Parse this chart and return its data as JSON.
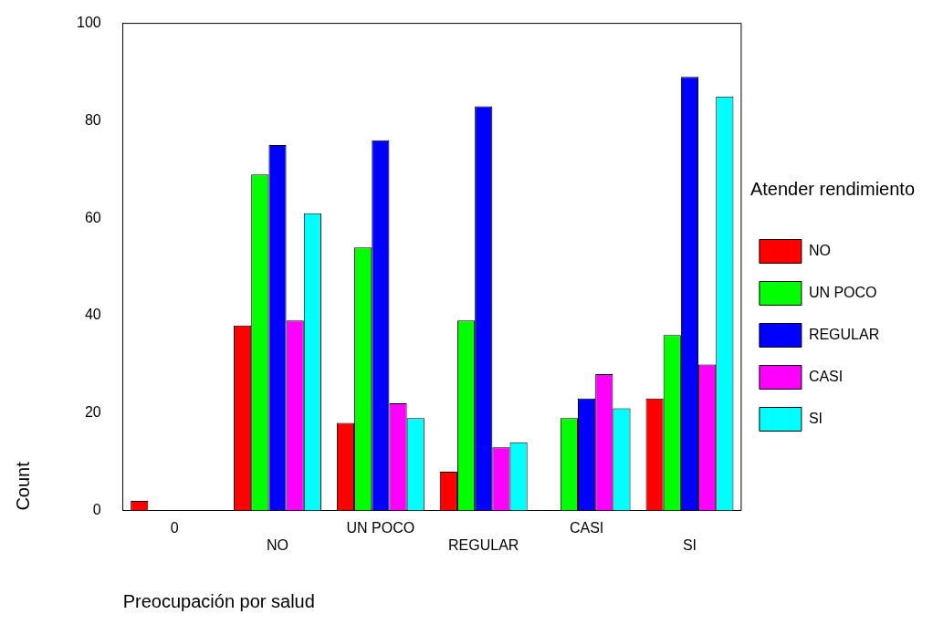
{
  "chart_data": {
    "type": "bar",
    "xlabel": "Preocupación por salud",
    "ylabel": "Count",
    "legend_title": "Atender rendimiento",
    "categories": [
      "0",
      "NO",
      "UN POCO",
      "REGULAR",
      "CASI",
      "SI"
    ],
    "series": [
      {
        "name": "NO",
        "color": "#ff0000",
        "values": [
          2,
          38,
          18,
          8,
          0,
          23
        ]
      },
      {
        "name": "UN POCO",
        "color": "#00ff00",
        "values": [
          0,
          69,
          54,
          39,
          19,
          36
        ]
      },
      {
        "name": "REGULAR",
        "color": "#0000ff",
        "values": [
          0,
          75,
          76,
          83,
          23,
          89
        ]
      },
      {
        "name": "CASI",
        "color": "#ff00ff",
        "values": [
          0,
          39,
          22,
          13,
          28,
          30
        ]
      },
      {
        "name": "SI",
        "color": "#00ffff",
        "values": [
          0,
          61,
          19,
          14,
          21,
          85
        ]
      }
    ],
    "ylim": [
      0,
      100
    ],
    "yticks": [
      0,
      20,
      40,
      60,
      80,
      100
    ],
    "grid": false,
    "legend": "right"
  }
}
